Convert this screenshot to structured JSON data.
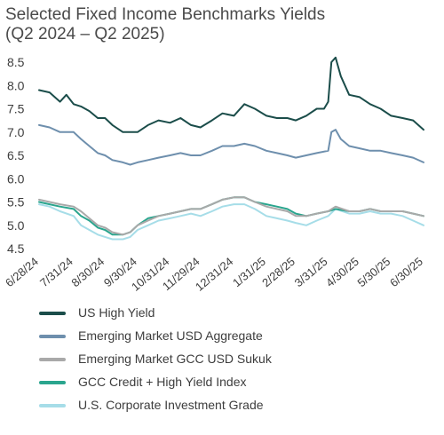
{
  "title": "Selected Fixed Income Benchmarks Yields",
  "subtitle": "(Q2 2024 – Q2 2025)",
  "chart_data": {
    "type": "line",
    "title": "Selected Fixed Income Benchmarks Yields",
    "subtitle": "(Q2 2024 – Q2 2025)",
    "xlabel": "",
    "ylabel": "",
    "ylim": [
      4.5,
      8.5
    ],
    "yticks": [
      4.5,
      5.0,
      5.5,
      6.0,
      6.5,
      7.0,
      7.5,
      8.0,
      8.5
    ],
    "ytick_labels": [
      "4.5",
      "5.0",
      "5.5",
      "6.0",
      "6.5",
      "7.0",
      "7.5",
      "8.0",
      "8.5"
    ],
    "xtick_labels": [
      "6/28/24",
      "7/31/24",
      "8/30/24",
      "9/30/24",
      "10/31/24",
      "11/29/24",
      "12/31/24",
      "1/31/25",
      "2/28/25",
      "3/31/25",
      "4/30/25",
      "5/30/25",
      "6/30/25"
    ],
    "grid": false,
    "legend_position": "bottom",
    "series": [
      {
        "name": "US High Yield",
        "color": "#1b4d4a",
        "x": [
          "6/28/24",
          "7/8/24",
          "7/18/24",
          "7/24/24",
          "7/31/24",
          "8/7/24",
          "8/15/24",
          "8/23/24",
          "8/30/24",
          "9/6/24",
          "9/16/24",
          "9/23/24",
          "9/30/24",
          "10/10/24",
          "10/20/24",
          "10/31/24",
          "11/10/24",
          "11/20/24",
          "11/29/24",
          "12/10/24",
          "12/20/24",
          "12/31/24",
          "1/10/25",
          "1/20/25",
          "1/31/25",
          "2/10/25",
          "2/20/25",
          "2/28/25",
          "3/10/25",
          "3/20/25",
          "3/27/25",
          "3/31/25",
          "4/3/25",
          "4/7/25",
          "4/12/25",
          "4/20/25",
          "4/30/25",
          "5/10/25",
          "5/20/25",
          "5/30/25",
          "6/10/25",
          "6/20/25",
          "6/30/25"
        ],
        "y": [
          7.9,
          7.85,
          7.65,
          7.8,
          7.6,
          7.55,
          7.45,
          7.3,
          7.3,
          7.15,
          7.0,
          7.0,
          7.0,
          7.15,
          7.25,
          7.2,
          7.3,
          7.15,
          7.1,
          7.25,
          7.4,
          7.35,
          7.6,
          7.5,
          7.35,
          7.3,
          7.3,
          7.25,
          7.35,
          7.5,
          7.5,
          7.65,
          8.5,
          8.6,
          8.2,
          7.8,
          7.75,
          7.6,
          7.5,
          7.35,
          7.3,
          7.25,
          7.05
        ]
      },
      {
        "name": "Emerging Market USD Aggregate",
        "color": "#6e8fad",
        "x": [
          "6/28/24",
          "7/8/24",
          "7/18/24",
          "7/31/24",
          "8/7/24",
          "8/15/24",
          "8/23/24",
          "8/30/24",
          "9/6/24",
          "9/16/24",
          "9/23/24",
          "9/30/24",
          "10/10/24",
          "10/20/24",
          "10/31/24",
          "11/10/24",
          "11/20/24",
          "11/29/24",
          "12/10/24",
          "12/20/24",
          "12/31/24",
          "1/10/25",
          "1/20/25",
          "1/31/25",
          "2/10/25",
          "2/20/25",
          "2/28/25",
          "3/10/25",
          "3/20/25",
          "3/31/25",
          "4/3/25",
          "4/7/25",
          "4/12/25",
          "4/20/25",
          "4/30/25",
          "5/10/25",
          "5/20/25",
          "5/30/25",
          "6/10/25",
          "6/20/25",
          "6/30/25"
        ],
        "y": [
          7.15,
          7.1,
          7.0,
          7.0,
          6.85,
          6.7,
          6.55,
          6.5,
          6.4,
          6.35,
          6.3,
          6.35,
          6.4,
          6.45,
          6.5,
          6.55,
          6.5,
          6.5,
          6.6,
          6.7,
          6.7,
          6.75,
          6.7,
          6.6,
          6.55,
          6.5,
          6.45,
          6.5,
          6.55,
          6.6,
          7.0,
          7.05,
          6.85,
          6.7,
          6.65,
          6.6,
          6.6,
          6.55,
          6.5,
          6.45,
          6.35
        ]
      },
      {
        "name": "Emerging Market GCC USD Sukuk",
        "color": "#a9a9a9",
        "x": [
          "6/28/24",
          "7/8/24",
          "7/18/24",
          "7/31/24",
          "8/7/24",
          "8/15/24",
          "8/23/24",
          "8/30/24",
          "9/6/24",
          "9/16/24",
          "9/23/24",
          "9/30/24",
          "10/10/24",
          "10/20/24",
          "10/31/24",
          "11/10/24",
          "11/20/24",
          "11/29/24",
          "12/10/24",
          "12/20/24",
          "12/31/24",
          "1/10/25",
          "1/20/25",
          "1/31/25",
          "2/10/25",
          "2/20/25",
          "2/28/25",
          "3/10/25",
          "3/20/25",
          "3/31/25",
          "4/7/25",
          "4/20/25",
          "4/30/25",
          "5/10/25",
          "5/20/25",
          "5/30/25",
          "6/10/25",
          "6/20/25",
          "6/30/25"
        ],
        "y": [
          5.55,
          5.5,
          5.45,
          5.4,
          5.3,
          5.15,
          5.0,
          4.95,
          4.85,
          4.8,
          4.85,
          5.0,
          5.1,
          5.2,
          5.25,
          5.3,
          5.35,
          5.35,
          5.45,
          5.55,
          5.6,
          5.6,
          5.5,
          5.4,
          5.35,
          5.3,
          5.2,
          5.2,
          5.25,
          5.3,
          5.4,
          5.3,
          5.3,
          5.35,
          5.3,
          5.3,
          5.3,
          5.25,
          5.2
        ]
      },
      {
        "name": "GCC Credit + High Yield Index",
        "color": "#2aa58e",
        "x": [
          "6/28/24",
          "7/8/24",
          "7/18/24",
          "7/31/24",
          "8/7/24",
          "8/15/24",
          "8/23/24",
          "8/30/24",
          "9/6/24",
          "9/16/24",
          "9/23/24",
          "9/30/24",
          "10/10/24",
          "10/20/24",
          "10/31/24",
          "11/10/24",
          "11/20/24",
          "11/29/24",
          "12/10/24",
          "12/20/24",
          "12/31/24",
          "1/10/25",
          "1/20/25",
          "1/31/25",
          "2/10/25",
          "2/20/25",
          "2/28/25",
          "3/10/25",
          "3/20/25",
          "3/31/25",
          "4/7/25",
          "4/20/25",
          "4/30/25",
          "5/10/25",
          "5/20/25",
          "5/30/25",
          "6/10/25",
          "6/20/25",
          "6/30/25"
        ],
        "y": [
          5.5,
          5.45,
          5.4,
          5.35,
          5.2,
          5.1,
          4.95,
          4.9,
          4.8,
          4.8,
          4.85,
          5.0,
          5.15,
          5.2,
          5.25,
          5.3,
          5.35,
          5.35,
          5.45,
          5.55,
          5.6,
          5.6,
          5.5,
          5.45,
          5.4,
          5.35,
          5.25,
          5.2,
          5.25,
          5.3,
          5.35,
          5.3,
          5.3,
          5.35,
          5.3,
          5.3,
          5.3,
          5.25,
          5.2
        ]
      },
      {
        "name": "U.S. Corporate Investment Grade",
        "color": "#a6dde8",
        "x": [
          "6/28/24",
          "7/8/24",
          "7/18/24",
          "7/31/24",
          "8/7/24",
          "8/15/24",
          "8/23/24",
          "8/30/24",
          "9/6/24",
          "9/16/24",
          "9/23/24",
          "9/30/24",
          "10/10/24",
          "10/20/24",
          "10/31/24",
          "11/10/24",
          "11/20/24",
          "11/29/24",
          "12/10/24",
          "12/20/24",
          "12/31/24",
          "1/10/25",
          "1/20/25",
          "1/31/25",
          "2/10/25",
          "2/20/25",
          "2/28/25",
          "3/10/25",
          "3/20/25",
          "3/31/25",
          "4/7/25",
          "4/20/25",
          "4/30/25",
          "5/10/25",
          "5/20/25",
          "5/30/25",
          "6/10/25",
          "6/20/25",
          "6/30/25"
        ],
        "y": [
          5.45,
          5.4,
          5.3,
          5.2,
          5.0,
          4.9,
          4.8,
          4.75,
          4.7,
          4.7,
          4.75,
          4.9,
          5.0,
          5.1,
          5.15,
          5.2,
          5.25,
          5.2,
          5.3,
          5.4,
          5.45,
          5.45,
          5.35,
          5.2,
          5.15,
          5.1,
          5.05,
          5.0,
          5.1,
          5.2,
          5.35,
          5.25,
          5.25,
          5.3,
          5.25,
          5.25,
          5.2,
          5.1,
          5.0
        ]
      }
    ]
  }
}
